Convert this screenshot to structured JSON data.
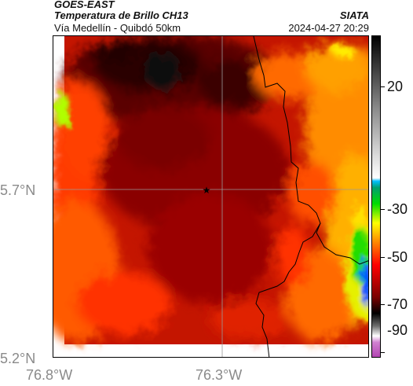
{
  "header": {
    "satellite": "GOES-EAST",
    "product": "Temperatura de Brillo CH13",
    "route": "Vía Medellín - Quibdó 50km",
    "agency": "SIATA",
    "datetime": "2024-04-27 20:29"
  },
  "axes": {
    "lat_ticks": [
      {
        "label": "5.7°N",
        "value": 5.7
      },
      {
        "label": "5.2°N",
        "value": 5.2
      }
    ],
    "lon_ticks": [
      {
        "label": "76.8°W",
        "value": -76.8
      },
      {
        "label": "76.3°W",
        "value": -76.3
      }
    ]
  },
  "colorbar": {
    "ticks": [
      {
        "label": "20",
        "value": 20
      },
      {
        "label": "-30",
        "value": -30
      },
      {
        "label": "-50",
        "value": -50
      },
      {
        "label": "-70",
        "value": -70
      },
      {
        "label": "-90",
        "value": -90
      }
    ],
    "colors": [
      "#b040b0",
      "#ffffff",
      "#000000",
      "#7a0000",
      "#ff0000",
      "#ff9900",
      "#ffff00",
      "#00dd00",
      "#00bfff",
      "#d0d0d0",
      "#000000"
    ]
  },
  "map": {
    "marker": "star-icon"
  }
}
